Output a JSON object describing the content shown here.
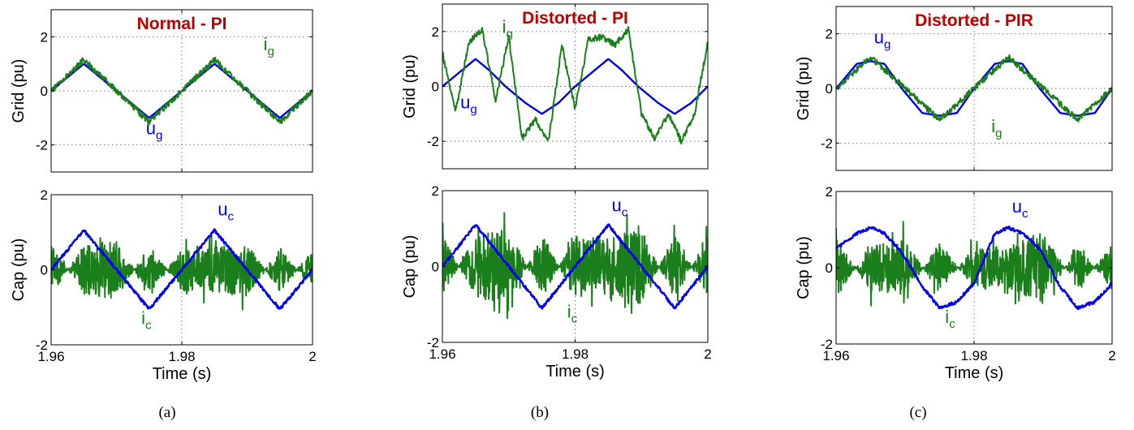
{
  "colors": {
    "voltage": "#0000ee",
    "current": "#1a7f1a",
    "title": "#bb0000",
    "grid": "#7a7a7a"
  },
  "chart_data": [
    {
      "type": "line",
      "panel": "a",
      "caption": "(a)",
      "title": "Normal - PI",
      "ylabel": "Grid (pu)",
      "xlabel": "",
      "xlim": [
        1.96,
        2
      ],
      "ylim": [
        -3,
        3
      ],
      "yticks": [
        2,
        0,
        -2
      ],
      "yticklabels": [
        "2",
        "0",
        "-2"
      ],
      "xticks": [
        1.96,
        1.98,
        2
      ],
      "xticklabels": [],
      "grid": true,
      "series": [
        {
          "name": "u",
          "sub": "g",
          "role": "voltage",
          "label_at": [
            1.9745,
            -1.6
          ],
          "x": [
            1.96,
            1.965,
            1.97,
            1.975,
            1.98,
            1.985,
            1.99,
            1.995,
            2
          ],
          "y": [
            0,
            1.0,
            0,
            -1.0,
            0,
            1.0,
            0,
            -1.0,
            0
          ]
        },
        {
          "name": "i",
          "sub": "g",
          "role": "current",
          "label_at": [
            1.9925,
            1.5
          ],
          "x": [
            1.96,
            1.965,
            1.97,
            1.975,
            1.98,
            1.985,
            1.99,
            1.995,
            2
          ],
          "y": [
            0,
            1.15,
            0,
            -1.15,
            0,
            1.15,
            0,
            -1.15,
            0
          ]
        }
      ]
    },
    {
      "type": "line",
      "panel": "a",
      "title": "",
      "ylabel": "Cap (pu)",
      "xlabel": "Time (s)",
      "xlim": [
        1.96,
        2
      ],
      "ylim": [
        -2,
        2
      ],
      "yticks": [
        2,
        0,
        -2
      ],
      "yticklabels": [
        "2",
        "0",
        "-2"
      ],
      "xticks": [
        1.96,
        1.98,
        2
      ],
      "xticklabels": [
        "1.96",
        "1.98",
        "2"
      ],
      "grid": true,
      "series": [
        {
          "name": "u",
          "sub": "c",
          "role": "voltage",
          "label_at": [
            1.9855,
            1.45
          ],
          "x": [
            1.96,
            1.965,
            1.97,
            1.975,
            1.98,
            1.985,
            1.99,
            1.995,
            2
          ],
          "y": [
            0,
            1.05,
            0,
            -1.05,
            0,
            1.05,
            0,
            -1.05,
            0
          ]
        },
        {
          "name": "i",
          "sub": "c",
          "role": "current",
          "label_at": [
            1.9738,
            -1.45
          ],
          "x": [
            1.96,
            1.965,
            1.97,
            1.975,
            1.98,
            1.985,
            1.99,
            1.995,
            2
          ],
          "y": [
            -1.3,
            1.2,
            1.4,
            -1.2,
            1.0,
            1.1,
            1.3,
            -1.1,
            1.0
          ]
        }
      ]
    },
    {
      "type": "line",
      "panel": "b",
      "caption": "(b)",
      "title": "Distorted - PI",
      "ylabel": "Grid (pu)",
      "xlabel": "",
      "xlim": [
        1.96,
        2
      ],
      "ylim": [
        -3,
        3
      ],
      "yticks": [
        2,
        0,
        -2
      ],
      "yticklabels": [
        "2",
        "0",
        "-2"
      ],
      "xticks": [
        1.96,
        1.98,
        2
      ],
      "xticklabels": [],
      "grid": true,
      "series": [
        {
          "name": "u",
          "sub": "g",
          "role": "voltage",
          "label_at": [
            1.9627,
            -0.8
          ],
          "x": [
            1.96,
            1.963,
            1.965,
            1.967,
            1.9695,
            1.9725,
            1.975,
            1.9775,
            1.98,
            1.983,
            1.985,
            1.987,
            1.9895,
            1.9925,
            1.995,
            1.9975,
            2
          ],
          "y": [
            0,
            0.6,
            1.0,
            0.6,
            0,
            -0.6,
            -1.0,
            -0.6,
            0,
            0.6,
            1.0,
            0.6,
            0,
            -0.6,
            -1.0,
            -0.6,
            0
          ]
        },
        {
          "name": "i",
          "sub": "g",
          "role": "current",
          "label_at": [
            1.969,
            1.95
          ],
          "x": [
            1.96,
            1.962,
            1.964,
            1.966,
            1.968,
            1.97,
            1.972,
            1.974,
            1.976,
            1.978,
            1.98,
            1.982,
            1.984,
            1.986,
            1.988,
            1.99,
            1.992,
            1.994,
            1.996,
            1.998,
            2
          ],
          "y": [
            1.2,
            -0.9,
            1.6,
            2.1,
            -0.5,
            1.8,
            -1.9,
            -1.2,
            -2.0,
            1.5,
            -0.8,
            1.7,
            1.8,
            1.5,
            2.1,
            -1.0,
            -1.9,
            -1.0,
            -2.0,
            -1.0,
            1.6
          ]
        }
      ]
    },
    {
      "type": "line",
      "panel": "b",
      "title": "",
      "ylabel": "Cap (pu)",
      "xlabel": "Time (s)",
      "xlim": [
        1.96,
        2
      ],
      "ylim": [
        -2,
        2
      ],
      "yticks": [
        2,
        0,
        -2
      ],
      "yticklabels": [
        "2",
        "0",
        "-2"
      ],
      "xticks": [
        1.96,
        1.98,
        2
      ],
      "xticklabels": [
        "1.96",
        "1.98",
        "2"
      ],
      "grid": true,
      "series": [
        {
          "name": "u",
          "sub": "c",
          "role": "voltage",
          "label_at": [
            1.9855,
            1.45
          ],
          "x": [
            1.96,
            1.965,
            1.97,
            1.975,
            1.98,
            1.985,
            1.99,
            1.995,
            2
          ],
          "y": [
            0,
            1.1,
            0,
            -1.1,
            0,
            1.1,
            0,
            -1.1,
            0
          ]
        },
        {
          "name": "i",
          "sub": "c",
          "role": "current",
          "label_at": [
            1.9788,
            -1.35
          ],
          "x": [
            1.96,
            1.965,
            1.97,
            1.975,
            1.98,
            1.985,
            1.99,
            1.995,
            2
          ],
          "y": [
            -1.5,
            1.5,
            1.9,
            -1.6,
            1.5,
            1.4,
            1.8,
            -1.6,
            1.5
          ]
        }
      ]
    },
    {
      "type": "line",
      "panel": "c",
      "caption": "(c)",
      "title": "Distorted - PIR",
      "ylabel": "Grid (pu)",
      "xlabel": "",
      "xlim": [
        1.96,
        2
      ],
      "ylim": [
        -3,
        3
      ],
      "yticks": [
        2,
        0,
        -2
      ],
      "yticklabels": [
        "2",
        "0",
        "-2"
      ],
      "xticks": [
        1.96,
        1.98,
        2
      ],
      "xticklabels": [],
      "grid": true,
      "series": [
        {
          "name": "u",
          "sub": "g",
          "role": "voltage",
          "label_at": [
            1.9655,
            1.65
          ],
          "x": [
            1.96,
            1.963,
            1.965,
            1.967,
            1.9695,
            1.9725,
            1.975,
            1.9775,
            1.98,
            1.983,
            1.985,
            1.987,
            1.9895,
            1.9925,
            1.995,
            1.9975,
            2
          ],
          "y": [
            0,
            0.9,
            1.0,
            0.9,
            0,
            -0.9,
            -1.0,
            -0.9,
            0,
            0.9,
            1.0,
            0.9,
            0,
            -0.9,
            -1.0,
            -0.9,
            0
          ]
        },
        {
          "name": "i",
          "sub": "g",
          "role": "current",
          "label_at": [
            1.9825,
            -1.6
          ],
          "x": [
            1.96,
            1.965,
            1.97,
            1.975,
            1.98,
            1.985,
            1.99,
            1.995,
            2
          ],
          "y": [
            0,
            1.15,
            0,
            -1.15,
            0,
            1.15,
            0,
            -1.15,
            0
          ]
        }
      ]
    },
    {
      "type": "line",
      "panel": "c",
      "title": "",
      "ylabel": "Cap (pu)",
      "xlabel": "Time (s)",
      "xlim": [
        1.96,
        2
      ],
      "ylim": [
        -2,
        2
      ],
      "yticks": [
        2,
        0,
        -2
      ],
      "yticklabels": [
        "2",
        "0",
        "-2"
      ],
      "xticks": [
        1.96,
        1.98,
        2
      ],
      "xticklabels": [
        "1.96",
        "1.98",
        "2"
      ],
      "grid": true,
      "series": [
        {
          "name": "u",
          "sub": "c",
          "role": "voltage",
          "label_at": [
            1.9855,
            1.45
          ],
          "x": [
            1.96,
            1.963,
            1.965,
            1.967,
            1.9695,
            1.9725,
            1.975,
            1.9775,
            1.98,
            1.983,
            1.985,
            1.987,
            1.9895,
            1.9925,
            1.995,
            1.9975,
            2
          ],
          "y": [
            0.5,
            0.9,
            1.05,
            0.9,
            0.4,
            -0.5,
            -1.05,
            -0.9,
            -0.4,
            0.9,
            1.05,
            0.9,
            0.5,
            -0.5,
            -1.05,
            -0.9,
            -0.4
          ]
        },
        {
          "name": "i",
          "sub": "c",
          "role": "current",
          "label_at": [
            1.9758,
            -1.45
          ],
          "x": [
            1.96,
            1.965,
            1.97,
            1.975,
            1.98,
            1.985,
            1.99,
            1.995,
            2
          ],
          "y": [
            -1.4,
            1.1,
            1.3,
            -1.2,
            1.0,
            1.0,
            1.7,
            -1.0,
            1.1
          ]
        }
      ]
    }
  ]
}
